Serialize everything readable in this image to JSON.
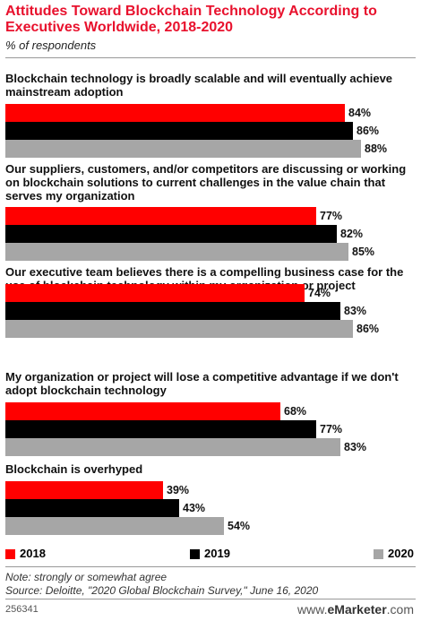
{
  "chart_data": {
    "type": "bar",
    "orientation": "horizontal",
    "title": "Attitudes Toward Blockchain Technology According to Executives Worldwide, 2018-2020",
    "subtitle": "% of respondents",
    "categories": [
      "Blockchain technology is broadly scalable and will eventually achieve mainstream adoption",
      "Our suppliers, customers, and/or competitors are discussing or working on blockchain solutions to current challenges in the value chain that serves my organization",
      "Our executive team believes there is a compelling business case for the use of blockchain technology within my organization or project",
      "My organization or project will lose a competitive advantage if we don't adopt blockchain technology",
      "Blockchain is overhyped"
    ],
    "series": [
      {
        "name": "2018",
        "color": "#ff0000",
        "values": [
          84,
          77,
          74,
          68,
          39
        ]
      },
      {
        "name": "2019",
        "color": "#000000",
        "values": [
          86,
          82,
          83,
          77,
          43
        ]
      },
      {
        "name": "2020",
        "color": "#a6a6a6",
        "values": [
          88,
          85,
          86,
          83,
          54
        ]
      }
    ],
    "value_suffix": "%",
    "xlim": [
      0,
      100
    ],
    "grid": false,
    "legend_position": "bottom"
  },
  "note": "Note: strongly or somewhat agree",
  "source": "Source: Deloitte, \"2020 Global Blockchain Survey,\" June 16, 2020",
  "footer_id": "256341",
  "brand": {
    "prefix": "www.",
    "name": "eMarketer",
    "suffix": ".com"
  }
}
